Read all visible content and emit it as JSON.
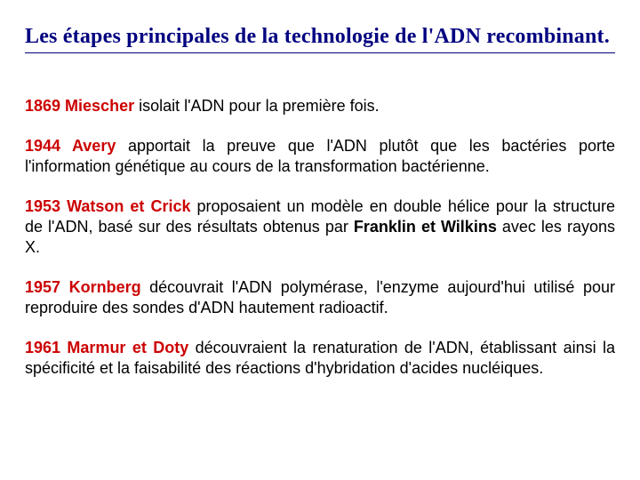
{
  "title": "Les étapes principales de la technologie de l'ADN recombinant.",
  "entries": [
    {
      "yearName": "1869 Miescher",
      "text": " isolait l'ADN pour la première fois.",
      "otherName": ""
    },
    {
      "yearName": "1944 Avery",
      "text": " apportait la preuve que l'ADN plutôt que les bactéries porte l'information génétique au cours de la transformation bactérienne.",
      "otherName": ""
    },
    {
      "yearName": "1953 Watson et Crick",
      "text1": " proposaient un modèle en double hélice pour la structure de l'ADN, basé sur des résultats obtenus par ",
      "otherName": "Franklin et Wilkins",
      "text2": " avec les rayons X."
    },
    {
      "yearName": "1957 Kornberg",
      "text": " découvrait l'ADN polymérase, l'enzyme aujourd'hui utilisé pour reproduire des sondes d'ADN hautement radioactif.",
      "otherName": ""
    },
    {
      "yearName": "1961 Marmur et Doty",
      "text": " découvraient la renaturation de l'ADN, établissant ainsi la spécificité et la faisabilité des réactions d'hybridation d'acides nucléiques.",
      "otherName": ""
    }
  ],
  "colors": {
    "title": "#000080",
    "year": "#cc0000",
    "body": "#000000",
    "background": "#ffffff"
  },
  "fontsize": {
    "title": 24,
    "body": 18
  }
}
